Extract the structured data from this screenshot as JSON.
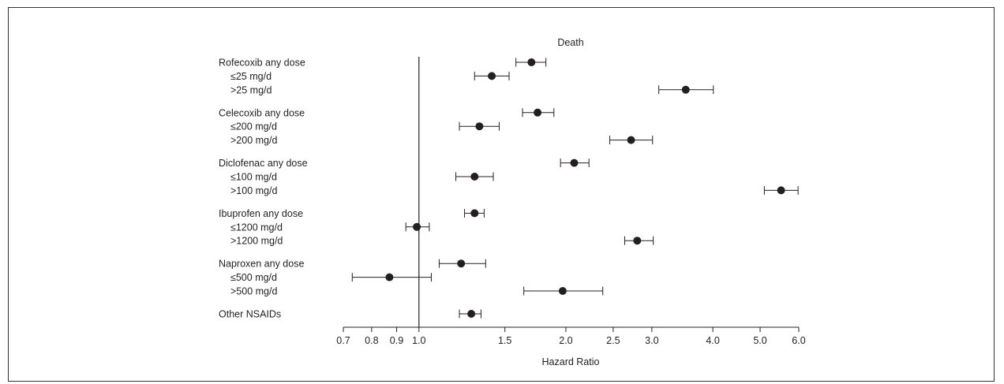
{
  "chart_data": {
    "type": "forest",
    "title": "Death",
    "xlabel": "Hazard Ratio",
    "ylabel": "",
    "x_scale": "log",
    "xlim": [
      0.7,
      6.0
    ],
    "reference_line": 1.0,
    "x_ticks": [
      "0.7",
      "0.8",
      "0.9",
      "1.0",
      "1.5",
      "2.0",
      "2.5",
      "3.0",
      "4.0",
      "5.0",
      "6.0"
    ],
    "rows": [
      {
        "label": "Rofecoxib any dose",
        "hr": 1.7,
        "lo": 1.58,
        "hi": 1.82
      },
      {
        "label": "≤25 mg/d",
        "hr": 1.41,
        "lo": 1.3,
        "hi": 1.53
      },
      {
        "label": ">25 mg/d",
        "hr": 3.52,
        "lo": 3.1,
        "hi": 4.01
      },
      {
        "label": "Celecoxib any dose",
        "hr": 1.75,
        "lo": 1.63,
        "hi": 1.89
      },
      {
        "label": "≤200 mg/d",
        "hr": 1.33,
        "lo": 1.21,
        "hi": 1.46
      },
      {
        "label": ">200 mg/d",
        "hr": 2.72,
        "lo": 2.46,
        "hi": 3.01
      },
      {
        "label": "Diclofenac any dose",
        "hr": 2.08,
        "lo": 1.95,
        "hi": 2.23
      },
      {
        "label": "≤100 mg/d",
        "hr": 1.3,
        "lo": 1.19,
        "hi": 1.42
      },
      {
        "label": ">100 mg/d",
        "hr": 5.52,
        "lo": 5.1,
        "hi": 5.98
      },
      {
        "label": "Ibuprofen any dose",
        "hr": 1.3,
        "lo": 1.24,
        "hi": 1.36
      },
      {
        "label": "≤1200 mg/d",
        "hr": 0.99,
        "lo": 0.94,
        "hi": 1.05
      },
      {
        "label": ">1200 mg/d",
        "hr": 2.8,
        "lo": 2.64,
        "hi": 3.02
      },
      {
        "label": "Naproxen any dose",
        "hr": 1.22,
        "lo": 1.1,
        "hi": 1.37
      },
      {
        "label": "≤500 mg/d",
        "hr": 0.87,
        "lo": 0.73,
        "hi": 1.06
      },
      {
        "label": ">500 mg/d",
        "hr": 1.97,
        "lo": 1.64,
        "hi": 2.38
      },
      {
        "label": "Other NSAIDs",
        "hr": 1.28,
        "lo": 1.21,
        "hi": 1.34
      }
    ],
    "grid": false,
    "legend": "none"
  }
}
